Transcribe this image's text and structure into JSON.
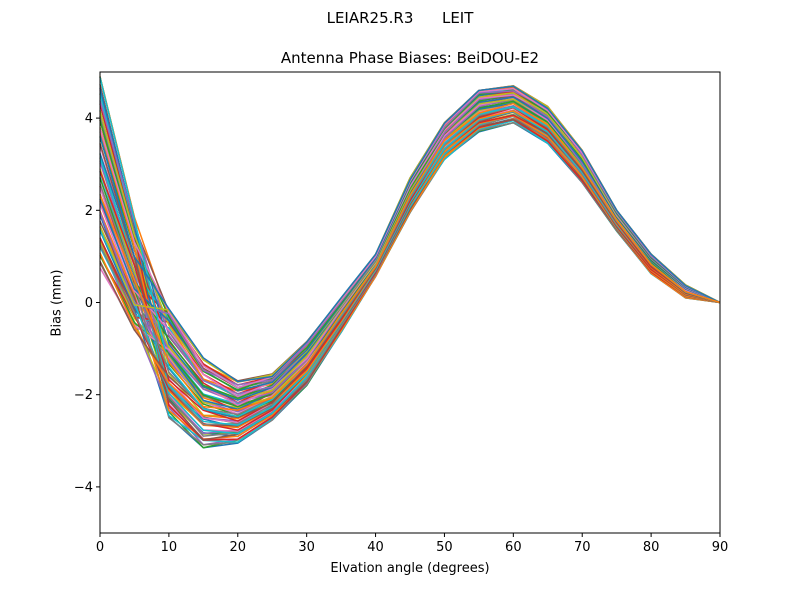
{
  "chart_data": {
    "type": "line",
    "suptitle": "LEIAR25.R3      LEIT",
    "title": "Antenna Phase Biases: BeiDOU-E2",
    "xlabel": "Elvation angle (degrees)",
    "ylabel": "Bias (mm)",
    "xlim": [
      0,
      90
    ],
    "ylim": [
      -5,
      5
    ],
    "xticks": [
      0,
      10,
      20,
      30,
      40,
      50,
      60,
      70,
      80,
      90
    ],
    "yticks": [
      -4,
      -2,
      0,
      2,
      4
    ],
    "ytick_labels": [
      "−4",
      "−2",
      "0",
      "2",
      "4"
    ],
    "x": [
      0,
      5,
      10,
      15,
      20,
      25,
      30,
      35,
      40,
      45,
      50,
      55,
      60,
      65,
      70,
      75,
      80,
      85,
      90
    ],
    "series_count": 72,
    "series_envelope": {
      "y_min": [
        0.75,
        -0.6,
        -2.5,
        -3.15,
        -3.05,
        -2.55,
        -1.8,
        -0.65,
        0.55,
        1.95,
        3.1,
        3.7,
        3.9,
        3.45,
        2.6,
        1.55,
        0.62,
        0.1,
        0.0
      ],
      "y_max": [
        4.9,
        1.85,
        -0.1,
        -1.2,
        -1.7,
        -1.55,
        -0.85,
        0.1,
        1.05,
        2.7,
        3.9,
        4.6,
        4.7,
        4.25,
        3.3,
        2.0,
        1.05,
        0.38,
        0.0
      ]
    },
    "grid": false,
    "legend": false
  }
}
